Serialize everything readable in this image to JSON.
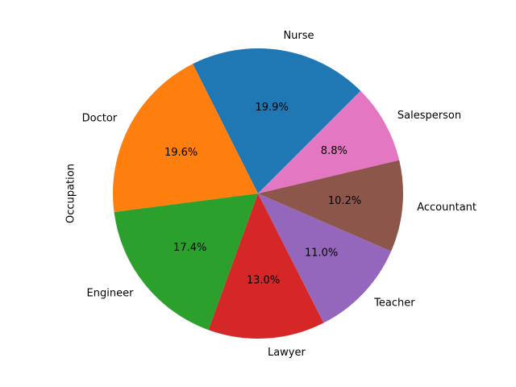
{
  "chart_data": {
    "type": "pie",
    "title": "",
    "ylabel": "Occupation",
    "categories": [
      "Nurse",
      "Doctor",
      "Engineer",
      "Lawyer",
      "Teacher",
      "Accountant",
      "Salesperson"
    ],
    "values": [
      19.9,
      19.6,
      17.4,
      13.0,
      11.0,
      10.2,
      8.8
    ],
    "percent_labels": [
      "19.9%",
      "19.6%",
      "17.4%",
      "13.0%",
      "11.0%",
      "10.2%",
      "8.8%"
    ],
    "colors": [
      "#1f77b4",
      "#ff7f0e",
      "#2ca02c",
      "#d62728",
      "#9467bd",
      "#8c564b",
      "#e377c2"
    ],
    "start_angle_deg": 45,
    "direction": "counterclockwise",
    "legend": "none"
  }
}
